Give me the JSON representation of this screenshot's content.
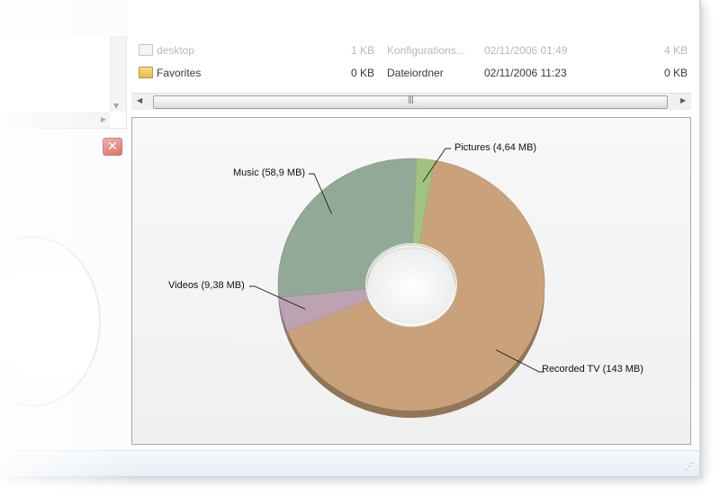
{
  "window": {
    "colors": {
      "accent_close": "#d6685e",
      "frame": "#cfd8e2"
    }
  },
  "file_list": {
    "rows": [
      {
        "icon": "document-icon",
        "name": "desktop",
        "size": "1 KB",
        "type": "Konfigurations...",
        "date": "02/11/2006 01:49",
        "extra": "4 KB"
      },
      {
        "icon": "folder-icon",
        "name": "Favorites",
        "size": "0 KB",
        "type": "Dateiordner",
        "date": "02/11/2006 11:23",
        "extra": "0 KB"
      }
    ]
  },
  "scrollbar": {
    "grip": "|||"
  },
  "chart_data": {
    "type": "pie",
    "variant": "donut",
    "title": "",
    "slices": [
      {
        "label": "Recorded TV (143 MB)",
        "name": "Recorded TV",
        "value": 143,
        "unit": "MB",
        "color": "#c9a27c"
      },
      {
        "label": "Videos (9,38 MB)",
        "name": "Videos",
        "value": 9.38,
        "unit": "MB",
        "color": "#bda2b2"
      },
      {
        "label": "Music (58,9 MB)",
        "name": "Music",
        "value": 58.9,
        "unit": "MB",
        "color": "#93a997"
      },
      {
        "label": "Pictures (4,64 MB)",
        "name": "Pictures",
        "value": 4.64,
        "unit": "MB",
        "color": "#a2c27f"
      }
    ],
    "legend": "callout labels"
  }
}
